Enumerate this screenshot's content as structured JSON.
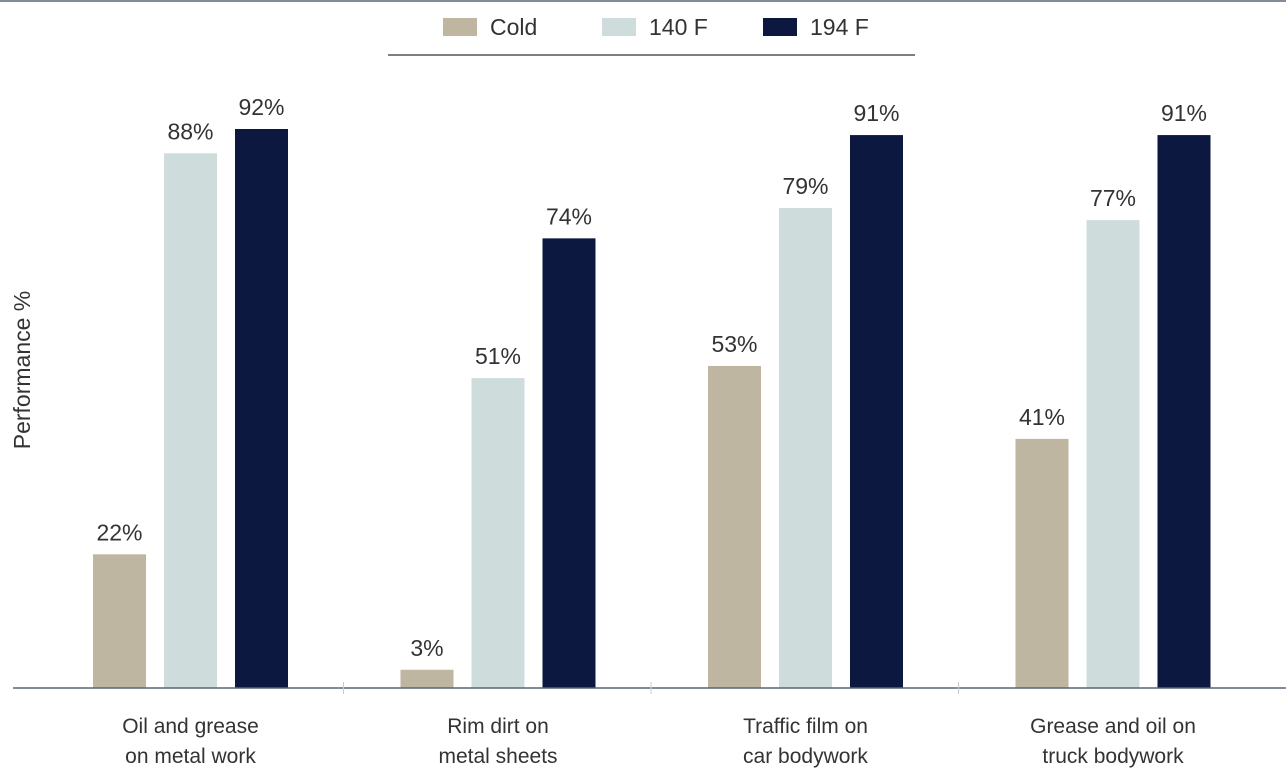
{
  "chart_data": {
    "type": "bar",
    "title": "",
    "xlabel": "",
    "ylabel": "Performance %",
    "ylim": [
      0,
      100
    ],
    "grid": false,
    "legend": "top-center",
    "categories": [
      [
        "Oil and grease",
        "on metal work"
      ],
      [
        "Rim dirt on",
        "metal sheets"
      ],
      [
        "Traffic film on",
        "car bodywork"
      ],
      [
        "Grease and oil on",
        "truck bodywork"
      ]
    ],
    "series": [
      {
        "name": "Cold",
        "color": "#bfb6a2",
        "values": [
          22,
          3,
          53,
          41
        ],
        "labels": [
          "22%",
          "3%",
          "53%",
          "41%"
        ]
      },
      {
        "name": "140 F",
        "color": "#cfdcdc",
        "values": [
          88,
          51,
          79,
          77
        ],
        "labels": [
          "88%",
          "51%",
          "79%",
          "77%"
        ]
      },
      {
        "name": "194 F",
        "color": "#0d1840",
        "values": [
          92,
          74,
          91,
          91
        ],
        "labels": [
          "92%",
          "74%",
          "91%",
          "91%"
        ]
      }
    ]
  }
}
